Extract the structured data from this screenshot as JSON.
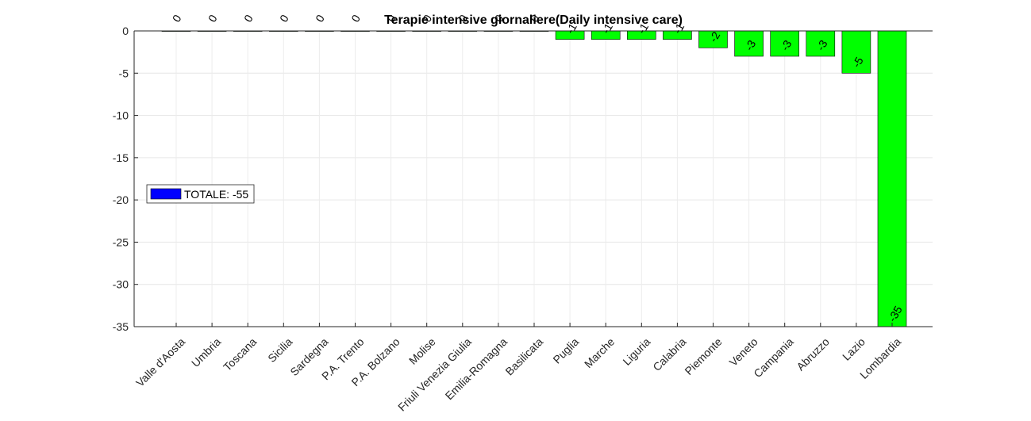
{
  "chart_data": {
    "type": "bar",
    "title": "Terapie intensive giornaliere(Daily intensive care)",
    "categories": [
      "Valle d'Aosta",
      "Umbria",
      "Toscana",
      "Sicilia",
      "Sardegna",
      "P.A. Trento",
      "P.A. Bolzano",
      "Molise",
      "Friuli Venezia Giulia",
      "Emilia-Romagna",
      "Basilicata",
      "Puglia",
      "Marche",
      "Liguria",
      "Calabria",
      "Piemonte",
      "Veneto",
      "Campania",
      "Abruzzo",
      "Lazio",
      "Lombardia"
    ],
    "values": [
      0,
      0,
      0,
      0,
      0,
      0,
      0,
      0,
      0,
      0,
      0,
      -1,
      -1,
      -1,
      -1,
      -2,
      -3,
      -3,
      -3,
      -5,
      -35
    ],
    "data_labels": [
      "0",
      "0",
      "0",
      "0",
      "0",
      "0",
      "0",
      "0",
      "0",
      "0",
      "0",
      "-1",
      "-1",
      "-1",
      "-1",
      "-2",
      "-3",
      "-3",
      "-3",
      "-5",
      "-35"
    ],
    "ylim": [
      -35,
      0
    ],
    "yticks": [
      0,
      -5,
      -10,
      -15,
      -20,
      -25,
      -30,
      -35
    ],
    "ytick_labels": [
      "0",
      "-5",
      "-10",
      "-15",
      "-20",
      "-25",
      "-30",
      "-35"
    ],
    "bar_color": "#00ff00",
    "grid": true,
    "legend": {
      "placement": "left",
      "entries": [
        {
          "label": "TOTALE: -55",
          "color": "#0000ff"
        }
      ]
    }
  }
}
